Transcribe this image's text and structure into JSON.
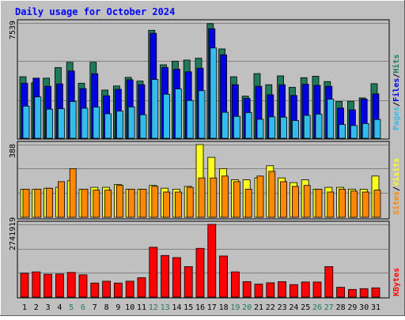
{
  "title": "Daily usage for October 2024",
  "colors": {
    "background": "#c0c0c0",
    "title": "#0000ff",
    "hits": "#1f7a5a",
    "files": "#0000e0",
    "pages": "#33bbee",
    "visits": "#ffff22",
    "sites": "#ff8800",
    "kbytes": "#ff0000",
    "weekend_label": "#1f7a5a"
  },
  "chart_data": [
    {
      "type": "bar",
      "panel": "top",
      "max_label": "7539",
      "ylim": [
        0,
        7539
      ],
      "legend": {
        "hits": "Hits",
        "files": "Files",
        "pages": "Pages",
        "separator": "/"
      },
      "categories": [
        "1",
        "2",
        "3",
        "4",
        "5",
        "6",
        "7",
        "8",
        "9",
        "10",
        "11",
        "12",
        "13",
        "14",
        "15",
        "16",
        "17",
        "18",
        "19",
        "20",
        "21",
        "22",
        "23",
        "24",
        "25",
        "26",
        "27",
        "28",
        "29",
        "30",
        "31"
      ],
      "series": [
        {
          "name": "Hits",
          "values": [
            4020,
            3630,
            3930,
            4620,
            4970,
            3600,
            4970,
            3150,
            3420,
            3980,
            3740,
            7060,
            4800,
            5040,
            5110,
            5230,
            7490,
            5840,
            4020,
            2750,
            4230,
            3500,
            4080,
            3330,
            3960,
            4060,
            3710,
            2400,
            2420,
            2640,
            3570
          ]
        },
        {
          "name": "Files",
          "values": [
            3600,
            3930,
            3400,
            3560,
            4400,
            3250,
            4220,
            2780,
            3200,
            3820,
            3500,
            6860,
            4620,
            4520,
            4350,
            4580,
            7160,
            5460,
            3500,
            2600,
            3400,
            2840,
            3500,
            2800,
            3530,
            3460,
            3400,
            1970,
            1860,
            2560,
            2900
          ]
        },
        {
          "name": "Pages",
          "values": [
            2100,
            2700,
            1900,
            1930,
            2400,
            1960,
            2040,
            1600,
            1780,
            2050,
            1540,
            3840,
            2880,
            3220,
            2470,
            3110,
            5900,
            1700,
            1430,
            1680,
            1240,
            1400,
            1380,
            1160,
            1500,
            1580,
            2550,
            900,
            830,
            960,
            1230
          ]
        }
      ]
    },
    {
      "type": "bar",
      "panel": "middle",
      "max_label": "388",
      "ylim": [
        0,
        388
      ],
      "legend": {
        "sites": "Sites",
        "visits": "Visits",
        "separator": "/"
      },
      "categories": [
        "1",
        "2",
        "3",
        "4",
        "5",
        "6",
        "7",
        "8",
        "9",
        "10",
        "11",
        "12",
        "13",
        "14",
        "15",
        "16",
        "17",
        "18",
        "19",
        "20",
        "21",
        "22",
        "23",
        "24",
        "25",
        "26",
        "27",
        "28",
        "29",
        "30",
        "31"
      ],
      "series": [
        {
          "name": "Visits",
          "values": [
            150,
            150,
            155,
            160,
            195,
            150,
            160,
            160,
            175,
            150,
            150,
            170,
            155,
            150,
            165,
            388,
            320,
            260,
            200,
            200,
            210,
            275,
            210,
            185,
            200,
            150,
            160,
            160,
            150,
            150,
            220
          ]
        },
        {
          "name": "Sites",
          "values": [
            150,
            150,
            155,
            190,
            260,
            150,
            145,
            145,
            170,
            150,
            150,
            165,
            135,
            135,
            160,
            210,
            210,
            220,
            190,
            150,
            220,
            245,
            190,
            165,
            170,
            150,
            135,
            150,
            140,
            135,
            145
          ]
        }
      ]
    },
    {
      "type": "bar",
      "panel": "bottom",
      "max_label": "2741919",
      "ylim": [
        0,
        2741919
      ],
      "legend": {
        "kbytes": "KBytes"
      },
      "categories": [
        "1",
        "2",
        "3",
        "4",
        "5",
        "6",
        "7",
        "8",
        "9",
        "10",
        "11",
        "12",
        "13",
        "14",
        "15",
        "16",
        "17",
        "18",
        "19",
        "20",
        "21",
        "22",
        "23",
        "24",
        "25",
        "26",
        "27",
        "28",
        "29",
        "30",
        "31"
      ],
      "weekend_days": [
        "5",
        "6",
        "12",
        "13",
        "19",
        "20",
        "26",
        "27"
      ],
      "series": [
        {
          "name": "KBytes",
          "values": [
            900000,
            950000,
            860000,
            870000,
            930000,
            840000,
            530000,
            600000,
            530000,
            600000,
            730000,
            1880000,
            1570000,
            1490000,
            1150000,
            1840000,
            2741919,
            1550000,
            950000,
            580000,
            490000,
            540000,
            580000,
            470000,
            570000,
            570000,
            1150000,
            370000,
            290000,
            320000,
            350000
          ]
        }
      ]
    }
  ]
}
